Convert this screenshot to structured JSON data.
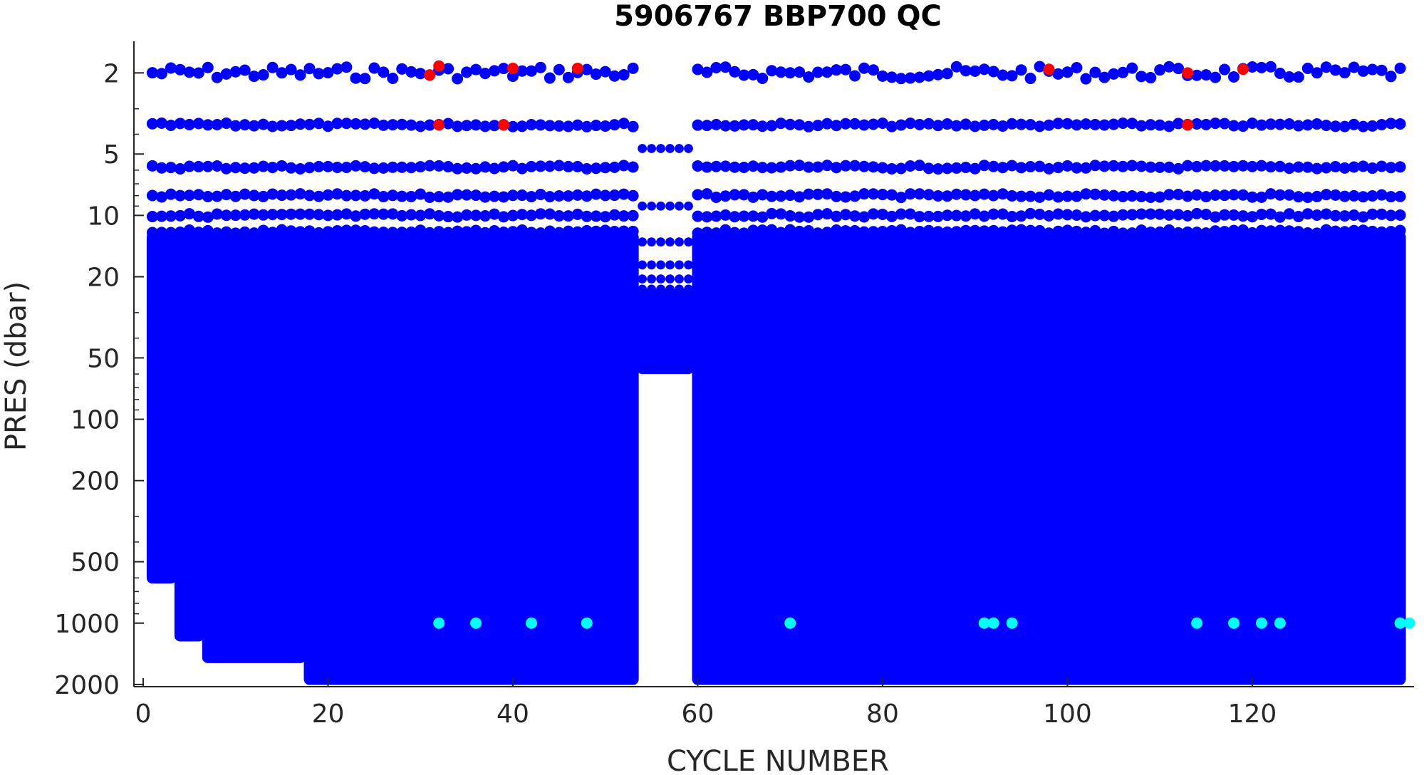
{
  "chart_data": {
    "type": "scatter",
    "title": "5906767 BBP700 QC",
    "xlabel": "CYCLE NUMBER",
    "ylabel": "PRES (dbar)",
    "xlim": [
      -1,
      137.5
    ],
    "ylim": [
      1.4,
      2050
    ],
    "y_scale": "log",
    "y_reversed": true,
    "x_ticks": [
      0,
      20,
      40,
      60,
      80,
      100,
      120
    ],
    "y_ticks": [
      2,
      5,
      10,
      20,
      50,
      100,
      200,
      500,
      1000,
      2000
    ],
    "grid": false,
    "colors": {
      "good": "#0000ff",
      "bad": "#ff0000",
      "probably_good": "#00ffff",
      "axis": "#262626"
    },
    "qc_legend": null,
    "series": [
      {
        "color": "#0000ff",
        "fill_bands": [
          {
            "x_range": [
              1,
              3
            ],
            "y_range": [
              12,
              640
            ]
          },
          {
            "x_range": [
              4,
              6
            ],
            "y_range": [
              12,
              1230
            ]
          },
          {
            "x_range": [
              7,
              17
            ],
            "y_range": [
              12,
              1570
            ]
          },
          {
            "x_range": [
              18,
              53
            ],
            "y_range": [
              12,
              2010
            ]
          },
          {
            "x_range": [
              54,
              59
            ],
            "y_range": [
              23,
              60
            ]
          },
          {
            "x_range": [
              60,
              136
            ],
            "y_range": [
              12,
              2010
            ]
          }
        ],
        "depth_levels_upper": [
          2.0,
          3.6,
          5.8,
          8.0,
          10.0,
          12.0
        ],
        "depth_levels_gap_cycles": [
          4.7,
          9.0,
          13.5,
          17.5,
          20.5,
          23.0
        ]
      },
      {
        "color": "#ff0000",
        "points": [
          [
            31,
            2.05
          ],
          [
            32,
            1.85
          ],
          [
            40,
            1.9
          ],
          [
            47,
            1.9
          ],
          [
            98,
            1.92
          ],
          [
            113,
            2.0
          ],
          [
            119,
            1.92
          ],
          [
            32,
            3.6
          ],
          [
            39,
            3.6
          ],
          [
            113,
            3.6
          ]
        ]
      },
      {
        "color": "#00ffff",
        "points": [
          [
            32,
            1000
          ],
          [
            36,
            1000
          ],
          [
            42,
            1000
          ],
          [
            48,
            1000
          ],
          [
            70,
            1000
          ],
          [
            91,
            1000
          ],
          [
            92,
            1000
          ],
          [
            94,
            1000
          ],
          [
            114,
            1000
          ],
          [
            118,
            1000
          ],
          [
            121,
            1000
          ],
          [
            123,
            1000
          ],
          [
            136,
            1000
          ],
          [
            137,
            1000
          ]
        ]
      }
    ]
  }
}
